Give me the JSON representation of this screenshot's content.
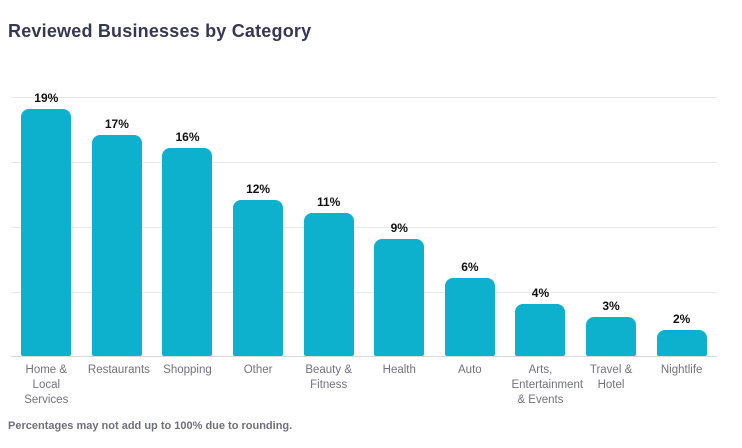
{
  "chart_data": {
    "type": "bar",
    "title": "Reviewed Businesses by Category",
    "categories": [
      "Home & Local Services",
      "Restaurants",
      "Shopping",
      "Other",
      "Beauty & Fitness",
      "Health",
      "Auto",
      "Arts, Entertainment & Events",
      "Travel & Hotel",
      "Nightlife"
    ],
    "values": [
      19,
      17,
      16,
      12,
      11,
      9,
      6,
      4,
      3,
      2
    ],
    "value_labels": [
      "19%",
      "17%",
      "16%",
      "12%",
      "11%",
      "9%",
      "6%",
      "4%",
      "3%",
      "2%"
    ],
    "xlabel": "",
    "ylabel": "",
    "ylim": [
      0,
      20
    ],
    "gridline_interval": 5,
    "grid": true,
    "legend": false,
    "footnote": "Percentages may not add up to 100% due to rounding.",
    "colors": {
      "bar": "#0DB1CD",
      "title_text": "#373753",
      "value_label_text": "#111111",
      "axis_label_text": "#72727c",
      "gridline": "#e8e8e8",
      "baseline": "#d9d9d9",
      "background": "#ffffff"
    }
  }
}
